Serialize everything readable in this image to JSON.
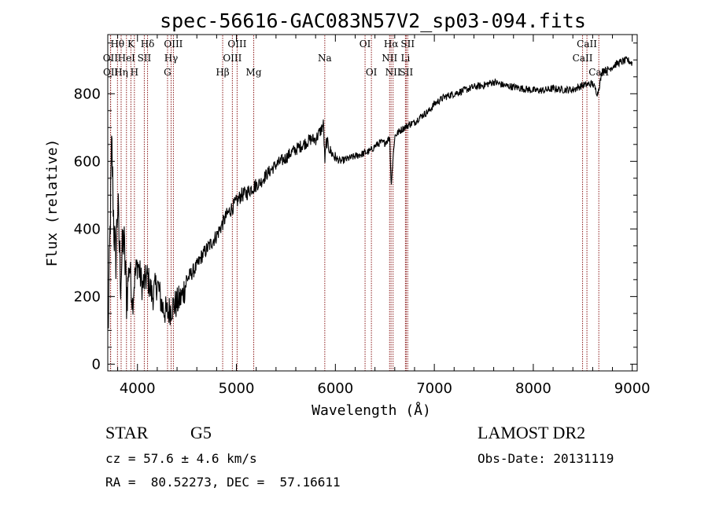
{
  "chart_data": {
    "type": "line",
    "title": "spec-56616-GAC083N57V2_sp03-094.fits",
    "xlabel": "Wavelength (Å)",
    "ylabel": "Flux (relative)",
    "xlim": [
      3700,
      9050
    ],
    "ylim": [
      -20,
      975
    ],
    "xticks": [
      4000,
      5000,
      6000,
      7000,
      8000,
      9000
    ],
    "yticks": [
      0,
      200,
      400,
      600,
      800
    ],
    "grid": false,
    "legend": "none",
    "series_color": "#000000",
    "line_marker_color": "#8b1a1a",
    "spectrum_anchors": {
      "x": [
        3700,
        3720,
        3740,
        3760,
        3780,
        3800,
        3830,
        3860,
        3890,
        3920,
        3950,
        3970,
        4000,
        4050,
        4100,
        4150,
        4200,
        4250,
        4300,
        4350,
        4400,
        4450,
        4500,
        4550,
        4600,
        4650,
        4700,
        4750,
        4800,
        4850,
        4900,
        4950,
        5000,
        5050,
        5100,
        5150,
        5200,
        5250,
        5300,
        5350,
        5400,
        5450,
        5500,
        5550,
        5600,
        5650,
        5700,
        5750,
        5800,
        5850,
        5880,
        5893,
        5910,
        5950,
        6000,
        6050,
        6100,
        6150,
        6200,
        6250,
        6300,
        6350,
        6400,
        6450,
        6500,
        6550,
        6563,
        6600,
        6650,
        6700,
        6750,
        6800,
        6850,
        6900,
        6950,
        7000,
        7100,
        7200,
        7300,
        7400,
        7500,
        7600,
        7700,
        7800,
        7900,
        8000,
        8100,
        8200,
        8300,
        8400,
        8500,
        8600,
        8650,
        8700,
        8750,
        8800,
        8850,
        8900,
        8950,
        9000
      ],
      "y": [
        50,
        350,
        650,
        420,
        300,
        480,
        250,
        380,
        200,
        300,
        180,
        250,
        300,
        230,
        260,
        200,
        240,
        170,
        150,
        170,
        180,
        200,
        250,
        270,
        290,
        320,
        340,
        360,
        380,
        410,
        440,
        460,
        480,
        500,
        505,
        520,
        530,
        540,
        560,
        575,
        590,
        600,
        610,
        625,
        635,
        645,
        655,
        665,
        665,
        690,
        710,
        600,
        660,
        630,
        610,
        600,
        605,
        610,
        615,
        620,
        625,
        630,
        645,
        655,
        655,
        670,
        530,
        675,
        690,
        700,
        710,
        715,
        730,
        740,
        750,
        770,
        790,
        800,
        810,
        820,
        825,
        835,
        825,
        820,
        815,
        810,
        810,
        815,
        812,
        812,
        825,
        830,
        800,
        870,
        870,
        880,
        890,
        895,
        900,
        890
      ]
    },
    "lines": [
      {
        "label": "Hθ",
        "x": 3798,
        "row": 0
      },
      {
        "label": "K",
        "x": 3934,
        "row": 0
      },
      {
        "label": "Hδ",
        "x": 4102,
        "row": 0
      },
      {
        "label": "OIII",
        "x": 4363,
        "row": 0
      },
      {
        "label": "OIII",
        "x": 5007,
        "row": 0
      },
      {
        "label": "OI",
        "x": 6300,
        "row": 0
      },
      {
        "label": "Hα",
        "x": 6563,
        "row": 0
      },
      {
        "label": "SII",
        "x": 6731,
        "row": 0
      },
      {
        "label": "CaII",
        "x": 8542,
        "row": 0
      },
      {
        "label": "OII",
        "x": 3727,
        "row": 1
      },
      {
        "label": "HeI",
        "x": 3889,
        "row": 1
      },
      {
        "label": "SII",
        "x": 4069,
        "row": 1
      },
      {
        "label": "Hγ",
        "x": 4340,
        "row": 1
      },
      {
        "label": "OIII",
        "x": 4959,
        "row": 1
      },
      {
        "label": "Na",
        "x": 5893,
        "row": 1
      },
      {
        "label": "NII",
        "x": 6548,
        "row": 1
      },
      {
        "label": "Li",
        "x": 6708,
        "row": 1
      },
      {
        "label": "CaII",
        "x": 8498,
        "row": 1
      },
      {
        "label": "OII",
        "x": 3729,
        "row": 2
      },
      {
        "label": "Hη",
        "x": 3835,
        "row": 2
      },
      {
        "label": "H",
        "x": 3969,
        "row": 2
      },
      {
        "label": "G",
        "x": 4304,
        "row": 2
      },
      {
        "label": "Hβ",
        "x": 4861,
        "row": 2
      },
      {
        "label": "Mg",
        "x": 5175,
        "row": 2
      },
      {
        "label": "OI",
        "x": 6364,
        "row": 2
      },
      {
        "label": "NII",
        "x": 6583,
        "row": 2
      },
      {
        "label": "SII",
        "x": 6716,
        "row": 2
      },
      {
        "label": "CaII",
        "x": 8662,
        "row": 2
      }
    ]
  },
  "info": {
    "obj_class": "STAR",
    "subclass": "G5",
    "survey": "LAMOST DR2",
    "redshift": "cz = 57.6 ± 4.6 km/s",
    "obs_date": "Obs-Date: 20131119",
    "coords": "RA =  80.52273, DEC =  57.16611"
  }
}
